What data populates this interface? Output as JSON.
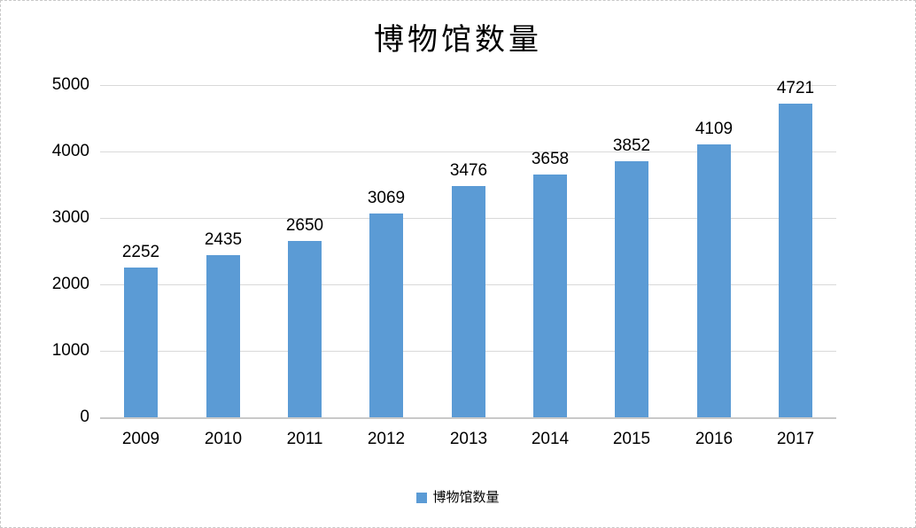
{
  "chart_data": {
    "type": "bar",
    "title": "博物馆数量",
    "categories": [
      "2009",
      "2010",
      "2011",
      "2012",
      "2013",
      "2014",
      "2015",
      "2016",
      "2017"
    ],
    "values": [
      2252,
      2435,
      2650,
      3069,
      3476,
      3658,
      3852,
      4109,
      4721
    ],
    "series_name": "博物馆数量",
    "xlabel": "",
    "ylabel": "",
    "ylim": [
      0,
      5000
    ],
    "yticks": [
      0,
      1000,
      2000,
      3000,
      4000,
      5000
    ],
    "grid": true,
    "legend_position": "bottom",
    "legend": {
      "label": "博物馆数量",
      "swatch_color": "#5b9bd5"
    },
    "colors": {
      "bar": "#5b9bd5",
      "gridline": "#d9d9d9",
      "axis_line": "#c9c9c9",
      "text": "#000000"
    }
  }
}
